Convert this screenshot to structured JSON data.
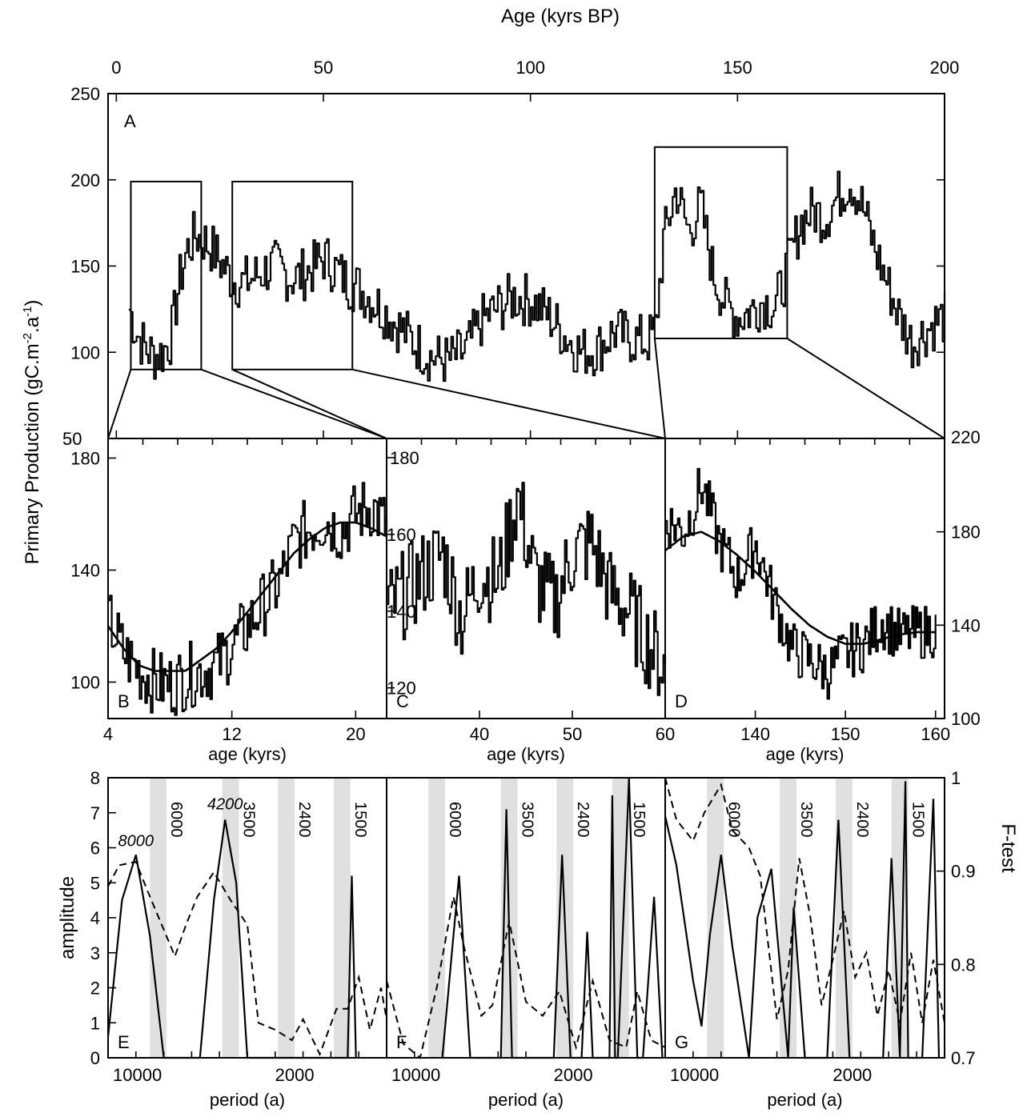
{
  "figure": {
    "top_axis_title": "Age (kyrs BP)",
    "left_axis_title": "Primary Production (gC.m-2.a-1)",
    "right_axis_title_bottom": "F-test"
  },
  "chart_data": [
    {
      "id": "A",
      "type": "line",
      "panel_label": "A",
      "xlabel": "Age (kyrs BP)",
      "ylabel": "Primary Production (gC.m-2.a-1)",
      "xlim": [
        -2,
        200
      ],
      "ylim": [
        50,
        250
      ],
      "x_ticks": [
        0,
        50,
        100,
        150,
        200
      ],
      "y_ticks": [
        50,
        100,
        150,
        200,
        250
      ],
      "zoom_boxes": [
        {
          "panel": "B",
          "x": [
            3.5,
            20.5
          ],
          "y": [
            90,
            199
          ]
        },
        {
          "panel": "C",
          "x": [
            28,
            57
          ],
          "y": [
            90,
            199
          ]
        },
        {
          "panel": "D",
          "x": [
            130,
            162
          ],
          "y": [
            108,
            219
          ]
        }
      ],
      "series": [
        {
          "x": [
            3,
            5,
            7,
            9,
            11,
            13,
            15,
            17,
            19,
            21,
            23,
            25,
            28,
            30,
            32,
            34,
            36,
            38,
            40,
            42,
            44,
            46,
            48,
            50,
            52,
            54,
            56,
            58,
            60,
            64,
            68,
            72,
            76,
            80,
            84,
            88,
            92,
            96,
            100,
            104,
            108,
            112,
            116,
            120,
            124,
            128,
            130,
            132,
            135,
            138,
            141,
            144,
            147,
            150,
            153,
            156,
            159,
            162,
            165,
            168,
            171,
            174,
            177,
            180,
            183,
            186,
            189,
            192,
            195,
            198,
            200
          ],
          "y": [
            125,
            110,
            102,
            98,
            100,
            108,
            140,
            160,
            168,
            165,
            160,
            152,
            142,
            140,
            142,
            145,
            148,
            150,
            147,
            143,
            144,
            147,
            150,
            155,
            150,
            145,
            140,
            138,
            134,
            125,
            115,
            105,
            97,
            95,
            100,
            118,
            126,
            132,
            130,
            122,
            110,
            100,
            102,
            112,
            108,
            106,
            112,
            165,
            195,
            170,
            185,
            145,
            128,
            120,
            124,
            130,
            126,
            150,
            175,
            182,
            178,
            190,
            200,
            185,
            160,
            140,
            120,
            105,
            112,
            118,
            120
          ]
        }
      ]
    },
    {
      "id": "B",
      "type": "line",
      "panel_label": "B",
      "xlabel": "age (kyrs)",
      "xlim": [
        4,
        22
      ],
      "ylim": [
        87,
        187
      ],
      "x_ticks": [
        4,
        12,
        20
      ],
      "y_ticks": [
        100,
        140,
        180
      ],
      "series": [
        {
          "name": "record",
          "x": [
            4,
            5,
            6,
            7,
            8,
            9,
            10,
            11,
            12,
            13,
            14,
            15,
            16,
            17,
            18,
            19,
            20,
            21,
            22
          ],
          "y": [
            122,
            110,
            104,
            100,
            99,
            102,
            104,
            106,
            113,
            120,
            128,
            135,
            150,
            155,
            158,
            154,
            160,
            163,
            155
          ]
        },
        {
          "name": "smooth",
          "x": [
            4,
            5,
            6,
            7,
            8,
            9,
            10,
            11,
            12,
            13,
            14,
            15,
            16,
            17,
            18,
            19,
            20,
            21,
            22
          ],
          "y": [
            120,
            112,
            106,
            104,
            104,
            104,
            108,
            112,
            118,
            125,
            132,
            139,
            146,
            151,
            155,
            157,
            157,
            155,
            152
          ]
        }
      ]
    },
    {
      "id": "C",
      "type": "line",
      "panel_label": "C",
      "xlabel": "age (kyrs)",
      "xlim": [
        30,
        60
      ],
      "ylim": [
        112,
        185
      ],
      "x_ticks": [
        40,
        50,
        60
      ],
      "y_ticks": [
        120,
        140,
        160,
        180
      ],
      "series": [
        {
          "name": "record",
          "x": [
            30,
            32,
            34,
            36,
            38,
            40,
            42,
            44,
            46,
            48,
            50,
            52,
            54,
            56,
            58,
            60
          ],
          "y": [
            140,
            145,
            150,
            155,
            138,
            150,
            148,
            170,
            148,
            142,
            155,
            158,
            145,
            140,
            132,
            125
          ]
        }
      ]
    },
    {
      "id": "D",
      "type": "line",
      "panel_label": "D",
      "xlabel": "age (kyrs)",
      "xlim": [
        130,
        161
      ],
      "ylim": [
        100,
        220
      ],
      "x_ticks": [
        130,
        140,
        150,
        160
      ],
      "x_tick_labels": [
        "",
        "140",
        "150",
        "160"
      ],
      "y_ticks": [
        100,
        140,
        180,
        220
      ],
      "series": [
        {
          "name": "record",
          "x": [
            130,
            132,
            134,
            136,
            138,
            140,
            142,
            144,
            146,
            148,
            150,
            152,
            154,
            156,
            158,
            160
          ],
          "y": [
            185,
            180,
            200,
            175,
            160,
            175,
            150,
            130,
            125,
            120,
            128,
            132,
            142,
            135,
            137,
            138
          ]
        },
        {
          "name": "smooth",
          "x": [
            130,
            132,
            134,
            136,
            138,
            140,
            142,
            144,
            146,
            148,
            150,
            152,
            154,
            156,
            158,
            160
          ],
          "y": [
            172,
            178,
            180,
            176,
            170,
            163,
            155,
            147,
            140,
            135,
            132,
            132,
            134,
            136,
            137,
            137
          ]
        }
      ]
    },
    {
      "id": "E",
      "type": "line",
      "panel_label": "E",
      "xlabel": "period (a)",
      "ylabel": "amplitude",
      "x_ticks": [
        10000,
        2000
      ],
      "ylim": [
        0,
        8
      ],
      "y_ticks": [
        0,
        1,
        2,
        3,
        4,
        5,
        6,
        7,
        8
      ],
      "y2lim": [
        0.7,
        1.0
      ],
      "bands": [
        "6000",
        "3500",
        "2400",
        "1500"
      ],
      "peak_labels": [
        "8000",
        "4200"
      ],
      "series": [
        {
          "name": "amplitude",
          "x": [
            0.0,
            0.05,
            0.1,
            0.15,
            0.2,
            0.33,
            0.38,
            0.42,
            0.46,
            0.5,
            0.86,
            0.875,
            0.89
          ],
          "y": [
            0.6,
            4.5,
            5.8,
            3.5,
            0.0,
            0.0,
            4.5,
            6.8,
            5.0,
            0.0,
            0.0,
            5.2,
            0.0
          ]
        },
        {
          "name": "F-test",
          "x": [
            0.0,
            0.04,
            0.1,
            0.14,
            0.24,
            0.28,
            0.32,
            0.38,
            0.44,
            0.5,
            0.54,
            0.6,
            0.66,
            0.7,
            0.76,
            0.82,
            0.86,
            0.9,
            0.94,
            0.98,
            1.0
          ],
          "y": [
            4.9,
            5.5,
            5.6,
            4.8,
            2.9,
            3.8,
            4.6,
            5.3,
            4.5,
            3.8,
            1.0,
            0.8,
            0.5,
            1.1,
            0.1,
            1.4,
            1.4,
            2.3,
            0.8,
            2.0,
            1.1
          ]
        }
      ]
    },
    {
      "id": "F",
      "type": "line",
      "panel_label": "F",
      "xlabel": "period (a)",
      "x_ticks": [
        10000,
        2000
      ],
      "ylim": [
        0,
        8
      ],
      "bands": [
        "6000",
        "3500",
        "2400",
        "1500"
      ],
      "series": [
        {
          "name": "amplitude",
          "x": [
            0.2,
            0.24,
            0.26,
            0.3,
            0.41,
            0.43,
            0.45,
            0.6,
            0.63,
            0.66,
            0.7,
            0.72,
            0.74,
            0.8,
            0.81,
            0.82,
            0.83,
            0.87,
            0.9,
            0.92,
            0.96,
            0.99
          ],
          "y": [
            0.0,
            3.5,
            5.2,
            0.0,
            0.0,
            7.1,
            0.0,
            0.0,
            5.8,
            0.0,
            0.0,
            3.6,
            0.0,
            0.0,
            7.5,
            0.0,
            0.0,
            8.0,
            0.0,
            0.0,
            4.6,
            0.0
          ]
        },
        {
          "name": "F-test",
          "x": [
            0.0,
            0.06,
            0.12,
            0.18,
            0.24,
            0.28,
            0.34,
            0.38,
            0.44,
            0.5,
            0.56,
            0.62,
            0.68,
            0.74,
            0.8,
            0.86,
            0.9,
            0.95,
            1.0
          ],
          "y": [
            2.2,
            0.4,
            0.0,
            2.0,
            4.6,
            3.1,
            1.2,
            1.5,
            3.9,
            1.6,
            1.2,
            1.9,
            0.3,
            2.2,
            0.5,
            0.3,
            1.9,
            0.5,
            0.3
          ]
        }
      ]
    },
    {
      "id": "G",
      "type": "line",
      "panel_label": "G",
      "xlabel": "period (a)",
      "x_ticks": [
        10000,
        2000
      ],
      "ylim": [
        0,
        8
      ],
      "y2lim": [
        0.7,
        1.0
      ],
      "y2_ticks": [
        0.7,
        0.8,
        0.9,
        1.0
      ],
      "bands": [
        "6000",
        "3500",
        "2400",
        "1500"
      ],
      "series": [
        {
          "name": "amplitude",
          "x": [
            0.0,
            0.04,
            0.1,
            0.13,
            0.16,
            0.2,
            0.24,
            0.3,
            0.33,
            0.38,
            0.44,
            0.46,
            0.5,
            0.58,
            0.62,
            0.66,
            0.78,
            0.81,
            0.84,
            0.86,
            0.87,
            0.9,
            0.92,
            0.96,
            0.98
          ],
          "y": [
            6.9,
            5.5,
            2.2,
            0.9,
            3.5,
            5.8,
            3.2,
            0.0,
            4.0,
            5.4,
            0.0,
            4.3,
            0.0,
            0.0,
            6.8,
            0.0,
            0.0,
            5.7,
            0.0,
            7.9,
            0.0,
            0.0,
            0.0,
            7.4,
            0.0
          ]
        },
        {
          "name": "F-test",
          "x": [
            0.0,
            0.04,
            0.1,
            0.14,
            0.2,
            0.24,
            0.3,
            0.34,
            0.4,
            0.44,
            0.48,
            0.52,
            0.56,
            0.6,
            0.64,
            0.68,
            0.72,
            0.76,
            0.8,
            0.84,
            0.88,
            0.92,
            0.96,
            1.0
          ],
          "y": [
            8.0,
            6.8,
            6.2,
            7.0,
            7.8,
            6.5,
            6.0,
            5.2,
            1.1,
            2.5,
            5.7,
            4.0,
            1.5,
            2.8,
            4.2,
            2.3,
            3.0,
            1.2,
            2.5,
            1.0,
            3.0,
            1.0,
            2.8,
            1.0
          ]
        }
      ]
    }
  ]
}
